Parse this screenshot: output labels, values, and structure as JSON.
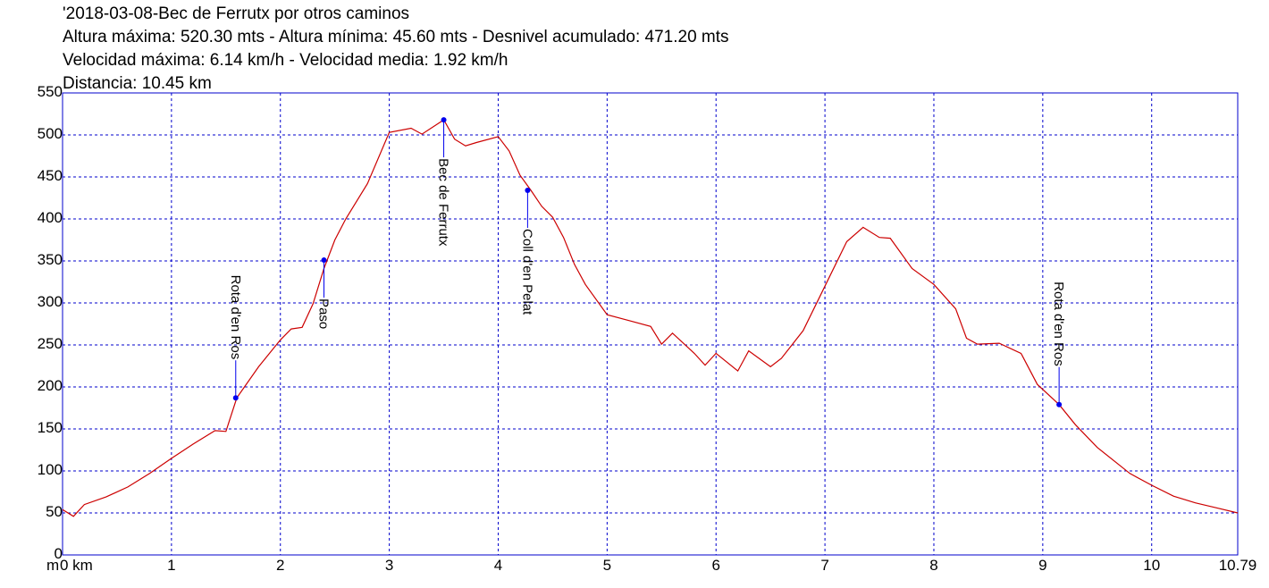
{
  "chart_data": {
    "type": "line",
    "title": "'2018-03-08-Bec de Ferrutx por otros caminos",
    "subtitle": [
      "Altura máxima: 520.30 mts - Altura mínima: 45.60 mts - Desnivel acumulado: 471.20 mts",
      "Velocidad máxima: 6.14 km/h - Velocidad media: 1.92 km/h",
      "Distancia: 10.45 km"
    ],
    "y_label": "m",
    "color": "#cc0000",
    "grid_color": "#0000cc",
    "marker_color": "#0000ee",
    "grid": true,
    "xlim": [
      0,
      10.79
    ],
    "xticks": [
      {
        "value": 0,
        "label": "0 km"
      },
      1,
      2,
      3,
      4,
      5,
      6,
      7,
      8,
      9,
      10,
      10.79
    ],
    "ylim": [
      0,
      550
    ],
    "yticks": [
      0,
      50,
      100,
      150,
      200,
      250,
      300,
      350,
      400,
      450,
      500,
      550
    ],
    "x": [
      0,
      0.1,
      0.2,
      0.4,
      0.6,
      0.8,
      1.0,
      1.2,
      1.4,
      1.5,
      1.6,
      1.8,
      2.0,
      2.1,
      2.2,
      2.3,
      2.4,
      2.5,
      2.6,
      2.8,
      3.0,
      3.2,
      3.3,
      3.5,
      3.6,
      3.7,
      3.8,
      4.0,
      4.1,
      4.2,
      4.3,
      4.4,
      4.5,
      4.6,
      4.7,
      4.8,
      5.0,
      5.2,
      5.4,
      5.5,
      5.6,
      5.8,
      5.9,
      6.0,
      6.2,
      6.3,
      6.5,
      6.6,
      6.8,
      7.0,
      7.2,
      7.35,
      7.5,
      7.6,
      7.8,
      8.0,
      8.2,
      8.3,
      8.4,
      8.6,
      8.8,
      8.95,
      9.15,
      9.3,
      9.5,
      9.8,
      10.0,
      10.2,
      10.4,
      10.6,
      10.79
    ],
    "values": [
      54,
      46,
      60,
      69,
      81,
      97,
      115,
      132,
      148,
      147,
      187,
      224,
      256,
      269,
      271,
      299,
      341,
      375,
      400,
      442,
      503,
      508,
      501,
      518,
      495,
      487,
      491,
      498,
      481,
      452,
      434,
      415,
      402,
      378,
      346,
      322,
      286,
      279,
      272,
      251,
      264,
      240,
      226,
      240,
      219,
      243,
      224,
      234,
      267,
      320,
      373,
      390,
      378,
      377,
      341,
      322,
      293,
      258,
      251,
      252,
      240,
      203,
      179,
      155,
      128,
      97,
      83,
      70,
      62,
      56,
      50
    ],
    "waypoints": [
      {
        "label": "Rota d'en Ros",
        "x": 1.59,
        "y": 187
      },
      {
        "label": "Paso",
        "x": 2.4,
        "y": 351
      },
      {
        "label": "Bec de Ferrutx",
        "x": 3.5,
        "y": 518
      },
      {
        "label": "Coll d'en Pelat",
        "x": 4.27,
        "y": 434
      },
      {
        "label": "Rota d'en Ros",
        "x": 9.15,
        "y": 179
      }
    ]
  }
}
